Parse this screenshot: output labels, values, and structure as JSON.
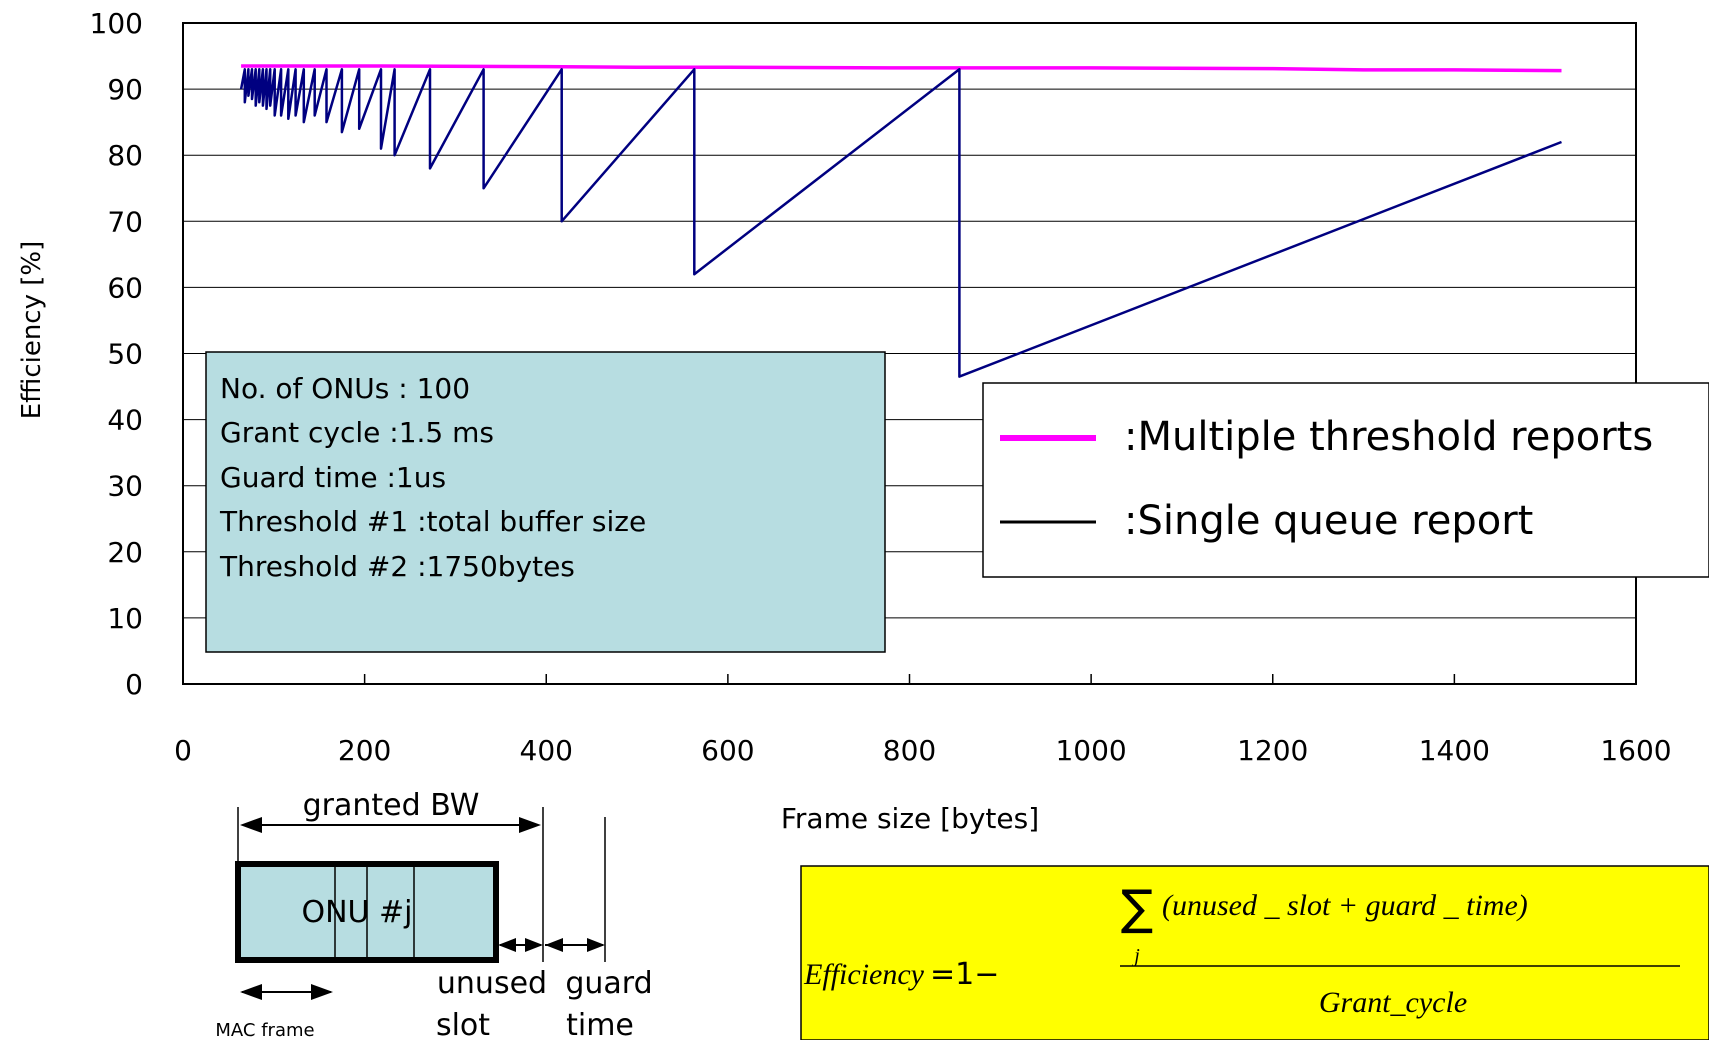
{
  "chart_data": {
    "type": "line",
    "title": "",
    "xlabel": "Frame size [bytes]",
    "ylabel": "Efficiency [%]",
    "xlim": [
      0,
      1600
    ],
    "ylim": [
      0,
      100
    ],
    "xticks": [
      0,
      200,
      400,
      600,
      800,
      1000,
      1200,
      1400,
      1600
    ],
    "yticks": [
      0,
      10,
      20,
      30,
      40,
      50,
      60,
      70,
      80,
      90,
      100
    ],
    "grid": "horizontal",
    "legend_position": "middle-right",
    "series": [
      {
        "name": ":Multiple threshold reports",
        "color": "#ff00ff",
        "x": [
          64,
          200,
          400,
          500,
          600,
          800,
          1000,
          1200,
          1300,
          1400,
          1518
        ],
        "y": [
          93.5,
          93.5,
          93.4,
          93.3,
          93.3,
          93.2,
          93.2,
          93.1,
          92.9,
          92.9,
          92.8
        ]
      },
      {
        "name": ":Single queue report",
        "color": "#000080",
        "x": [
          64,
          68,
          68,
          72,
          72,
          76,
          76,
          80,
          80,
          84,
          84,
          88,
          88,
          92,
          92,
          96,
          96,
          101,
          101,
          108,
          108,
          116,
          116,
          124,
          124,
          133,
          133,
          145,
          145,
          158,
          158,
          175,
          175,
          194,
          194,
          218,
          218,
          233,
          233,
          272,
          272,
          331,
          331,
          417,
          417,
          563,
          563,
          855,
          855,
          1518
        ],
        "y": [
          90,
          93,
          88,
          93,
          89,
          93,
          88.5,
          93,
          87.5,
          93,
          88,
          93,
          87.5,
          93,
          87,
          93,
          87.5,
          93,
          86,
          93,
          86,
          93,
          85.5,
          93,
          86,
          93,
          85,
          93,
          86,
          93,
          85,
          93,
          83.5,
          93,
          84,
          93,
          81,
          93,
          80,
          93,
          78,
          93,
          75,
          93,
          70,
          93,
          62,
          93,
          46.5,
          82
        ]
      }
    ]
  },
  "info_box": {
    "lines": [
      "No. of ONUs : 100",
      "Grant cycle :1.5 ms",
      "Guard time :1us",
      "Threshold #1 :total buffer size",
      "Threshold #2 :1750bytes"
    ],
    "background": "#b7dde1"
  },
  "diagram": {
    "granted_label": "granted BW",
    "onu_label": "ONU #j",
    "mac_label": "MAC frame",
    "unused_label_1": "unused",
    "unused_label_2": "slot",
    "guard_label_1": "guard",
    "guard_label_2": "time",
    "box_color": "#b7dde1"
  },
  "formula": {
    "lhs": "Efficiency",
    "eq": "=1−",
    "sum": "∑",
    "sum_index": "j",
    "numerator": "(unused _ slot + guard _ time)",
    "denominator": "Grant_cycle",
    "background": "#ffff00"
  }
}
